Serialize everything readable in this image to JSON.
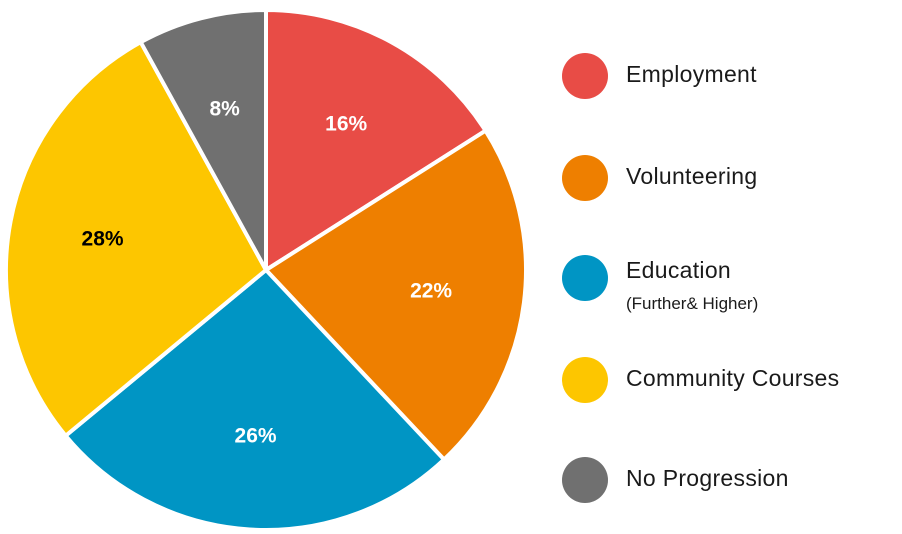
{
  "chart_data": {
    "type": "pie",
    "title": "",
    "start_angle_deg": 0,
    "direction": "clockwise",
    "slices": [
      {
        "label": "Employment",
        "sublabel": "",
        "value": 16,
        "display": "16%",
        "color": "#e84c46",
        "label_color": "#ffffff"
      },
      {
        "label": "Volunteering",
        "sublabel": "",
        "value": 22,
        "display": "22%",
        "color": "#ee7f00",
        "label_color": "#ffffff"
      },
      {
        "label": "Education",
        "sublabel": "(Further& Higher)",
        "value": 26,
        "display": "26%",
        "color": "#0095c4",
        "label_color": "#ffffff"
      },
      {
        "label": "Community Courses",
        "sublabel": "",
        "value": 28,
        "display": "28%",
        "color": "#fdc600",
        "label_color": "#000000"
      },
      {
        "label": "No Progression",
        "sublabel": "",
        "value": 8,
        "display": "8%",
        "color": "#707070",
        "label_color": "#ffffff"
      }
    ],
    "legend_position": "right"
  }
}
